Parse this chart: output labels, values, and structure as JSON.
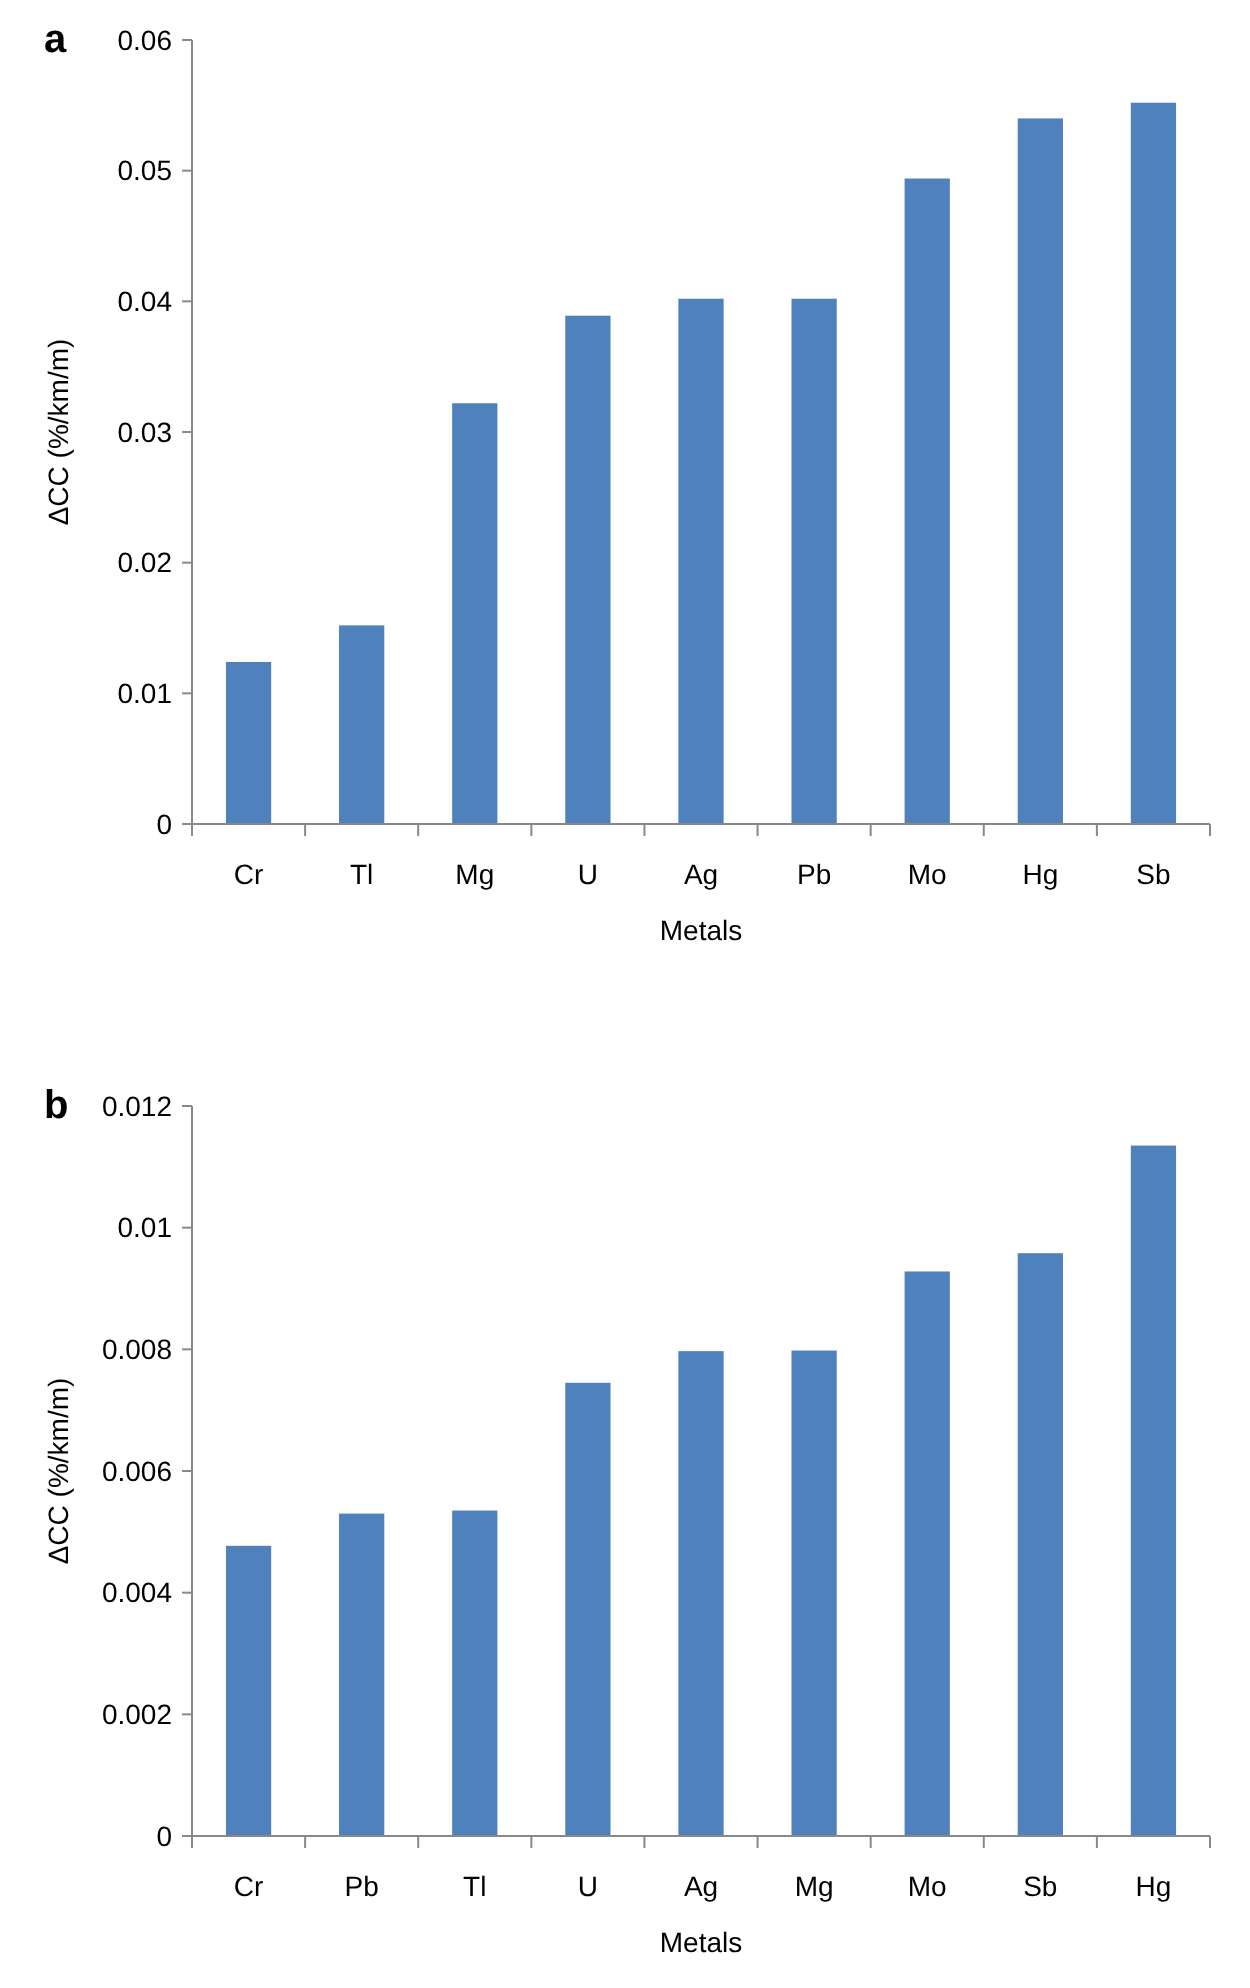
{
  "chart_data": [
    {
      "type": "bar",
      "title": "a",
      "xlabel": "Metals",
      "ylabel": "ΔCC (%/km/m)",
      "categories": [
        "Cr",
        "Tl",
        "Mg",
        "U",
        "Ag",
        "Pb",
        "Mo",
        "Hg",
        "Sb"
      ],
      "values": [
        0.0124,
        0.0152,
        0.0322,
        0.0389,
        0.0402,
        0.0402,
        0.0494,
        0.054,
        0.0552
      ],
      "color": "#4f81bd",
      "ylim": [
        0,
        0.06
      ],
      "yticks": [
        {
          "value": 0,
          "label": "0"
        },
        {
          "value": 0.01,
          "label": "0.01"
        },
        {
          "value": 0.02,
          "label": "0.02"
        },
        {
          "value": 0.03,
          "label": "0.03"
        },
        {
          "value": 0.04,
          "label": "0.04"
        },
        {
          "value": 0.05,
          "label": "0.05"
        },
        {
          "value": 0.06,
          "label": "0.06"
        }
      ],
      "grid": false
    },
    {
      "type": "bar",
      "title": "b",
      "xlabel": "Metals",
      "ylabel": "ΔCC (%/km/m)",
      "categories": [
        "Cr",
        "Pb",
        "Tl",
        "U",
        "Ag",
        "Mg",
        "Mo",
        "Sb",
        "Hg"
      ],
      "values": [
        0.00477,
        0.0053,
        0.00535,
        0.00745,
        0.00797,
        0.00798,
        0.00928,
        0.00958,
        0.01135
      ],
      "color": "#4f81bd",
      "ylim": [
        0,
        0.012
      ],
      "yticks": [
        {
          "value": 0,
          "label": "0"
        },
        {
          "value": 0.002,
          "label": "0.002"
        },
        {
          "value": 0.004,
          "label": "0.004"
        },
        {
          "value": 0.006,
          "label": "0.006"
        },
        {
          "value": 0.008,
          "label": "0.008"
        },
        {
          "value": 0.01,
          "label": "0.01"
        },
        {
          "value": 0.012,
          "label": "0.012"
        }
      ],
      "grid": false
    }
  ]
}
